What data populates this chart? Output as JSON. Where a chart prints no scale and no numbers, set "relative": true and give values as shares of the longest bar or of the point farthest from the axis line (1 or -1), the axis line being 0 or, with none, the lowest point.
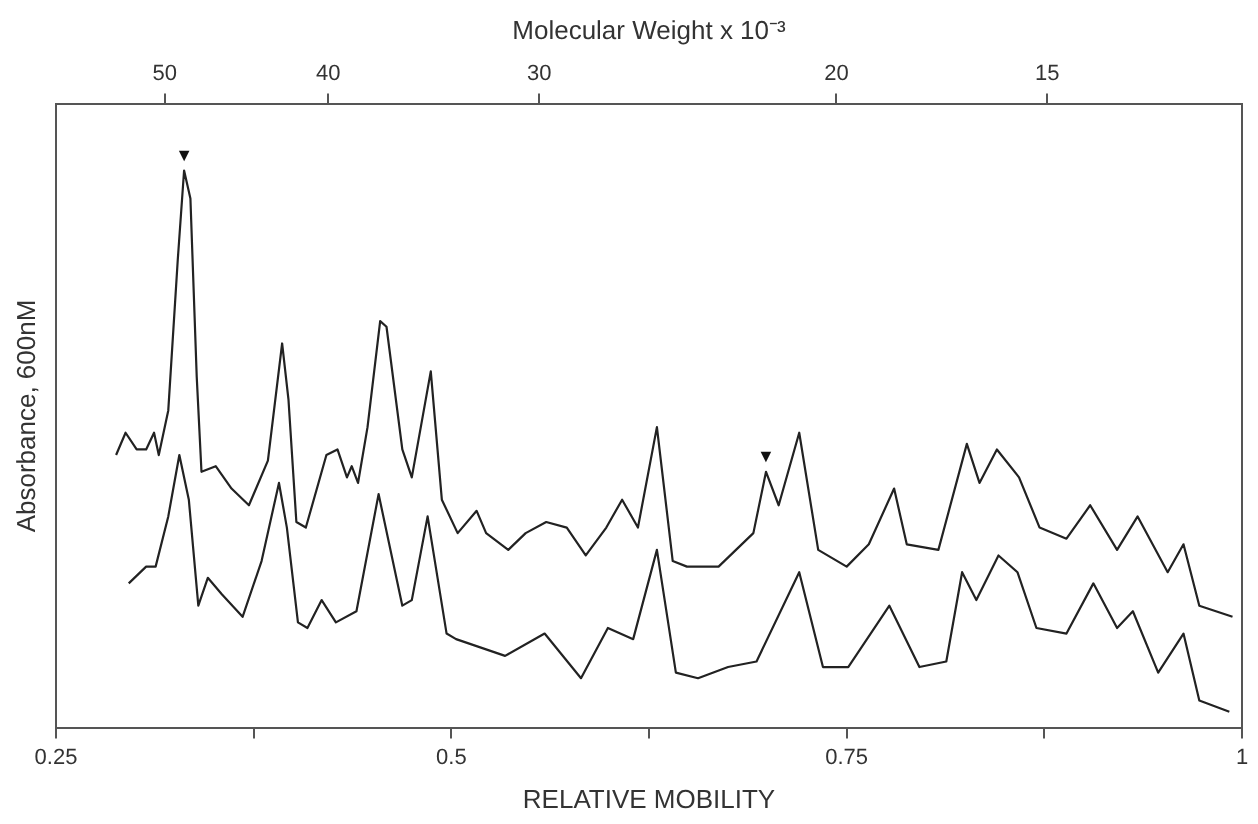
{
  "chart_data": {
    "type": "line",
    "relative": true,
    "xlabel": "RELATIVE MOBILITY",
    "ylabel": "Absorbance, 600nM",
    "x2label": "Molecular Weight x 10⁻³",
    "xlim": [
      0.25,
      1
    ],
    "xticks": [
      {
        "value": 0.25,
        "label": "0.25"
      },
      {
        "value": 0.375,
        "label": null
      },
      0.5,
      {
        "value": 0.625,
        "label": null
      },
      0.75,
      {
        "value": 0.875,
        "label": null
      },
      1
    ],
    "x2lim": [
      58,
      11.5
    ],
    "x2ticks": [
      50,
      40,
      30,
      20,
      15
    ],
    "log": "x2",
    "grid": false,
    "legend": false,
    "marker": "none",
    "line_style": "solid",
    "annotations": [
      {
        "text": "▼",
        "x": 0.331,
        "y": 1.0
      },
      {
        "text": "▼",
        "x": 0.699,
        "y": 0.46
      }
    ],
    "series": [
      {
        "color": "#222222",
        "x": [
          0.288,
          0.294,
          0.301,
          0.307,
          0.312,
          0.315,
          0.321,
          0.327,
          0.331,
          0.335,
          0.339,
          0.342,
          0.351,
          0.361,
          0.372,
          0.384,
          0.393,
          0.397,
          0.402,
          0.408,
          0.421,
          0.428,
          0.434,
          0.437,
          0.441,
          0.447,
          0.455,
          0.459,
          0.469,
          0.475,
          0.487,
          0.494,
          0.504,
          0.516,
          0.522,
          0.536,
          0.547,
          0.56,
          0.573,
          0.585,
          0.598,
          0.608,
          0.618,
          0.63,
          0.64,
          0.649,
          0.669,
          0.691,
          0.699,
          0.707,
          0.72,
          0.732,
          0.75,
          0.764,
          0.78,
          0.788,
          0.808,
          0.826,
          0.834,
          0.845,
          0.859,
          0.872,
          0.889,
          0.904,
          0.921,
          0.934,
          0.953,
          0.963,
          0.973,
          0.994
        ],
        "values": [
          0.49,
          0.53,
          0.5,
          0.5,
          0.53,
          0.49,
          0.57,
          0.84,
          1.0,
          0.95,
          0.63,
          0.46,
          0.47,
          0.43,
          0.4,
          0.48,
          0.69,
          0.59,
          0.37,
          0.36,
          0.49,
          0.5,
          0.45,
          0.47,
          0.44,
          0.54,
          0.73,
          0.72,
          0.5,
          0.45,
          0.64,
          0.41,
          0.35,
          0.39,
          0.35,
          0.32,
          0.35,
          0.37,
          0.36,
          0.31,
          0.36,
          0.41,
          0.36,
          0.54,
          0.3,
          0.29,
          0.29,
          0.35,
          0.46,
          0.4,
          0.53,
          0.32,
          0.29,
          0.33,
          0.43,
          0.33,
          0.32,
          0.51,
          0.44,
          0.5,
          0.45,
          0.36,
          0.34,
          0.4,
          0.32,
          0.38,
          0.28,
          0.33,
          0.22,
          0.2
        ]
      },
      {
        "color": "#222222",
        "x": [
          0.296,
          0.307,
          0.313,
          0.321,
          0.328,
          0.334,
          0.34,
          0.346,
          0.355,
          0.368,
          0.38,
          0.391,
          0.396,
          0.403,
          0.409,
          0.418,
          0.427,
          0.44,
          0.454,
          0.469,
          0.475,
          0.485,
          0.497,
          0.503,
          0.534,
          0.559,
          0.582,
          0.599,
          0.615,
          0.63,
          0.642,
          0.656,
          0.675,
          0.693,
          0.72,
          0.735,
          0.751,
          0.777,
          0.796,
          0.813,
          0.823,
          0.832,
          0.846,
          0.858,
          0.87,
          0.889,
          0.906,
          0.921,
          0.931,
          0.947,
          0.963,
          0.973,
          0.992
        ],
        "values": [
          0.26,
          0.29,
          0.29,
          0.38,
          0.49,
          0.41,
          0.22,
          0.27,
          0.24,
          0.2,
          0.3,
          0.44,
          0.36,
          0.19,
          0.18,
          0.23,
          0.19,
          0.21,
          0.42,
          0.22,
          0.23,
          0.38,
          0.17,
          0.16,
          0.13,
          0.17,
          0.09,
          0.18,
          0.16,
          0.32,
          0.1,
          0.09,
          0.11,
          0.12,
          0.28,
          0.11,
          0.11,
          0.22,
          0.11,
          0.12,
          0.28,
          0.23,
          0.31,
          0.28,
          0.18,
          0.17,
          0.26,
          0.18,
          0.21,
          0.1,
          0.17,
          0.05,
          0.03
        ]
      }
    ]
  }
}
